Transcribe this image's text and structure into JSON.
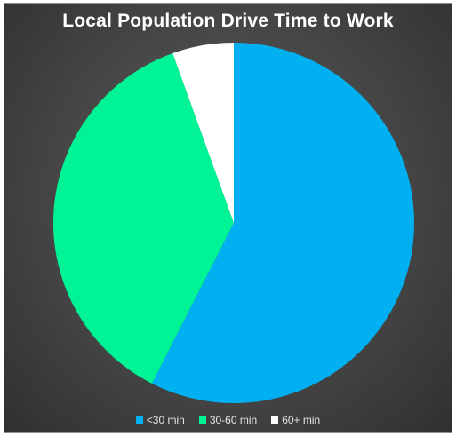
{
  "chart_data": {
    "type": "pie",
    "title": "Local Population Drive Time to Work",
    "categories": [
      "<30 min",
      "30-60 min",
      "60+ min"
    ],
    "values": [
      57.5,
      37,
      5.5
    ],
    "colors": [
      "#00b0f0",
      "#00f495",
      "#ffffff"
    ],
    "legend_position": "bottom",
    "start_angle_deg": 0,
    "direction": "clockwise"
  }
}
